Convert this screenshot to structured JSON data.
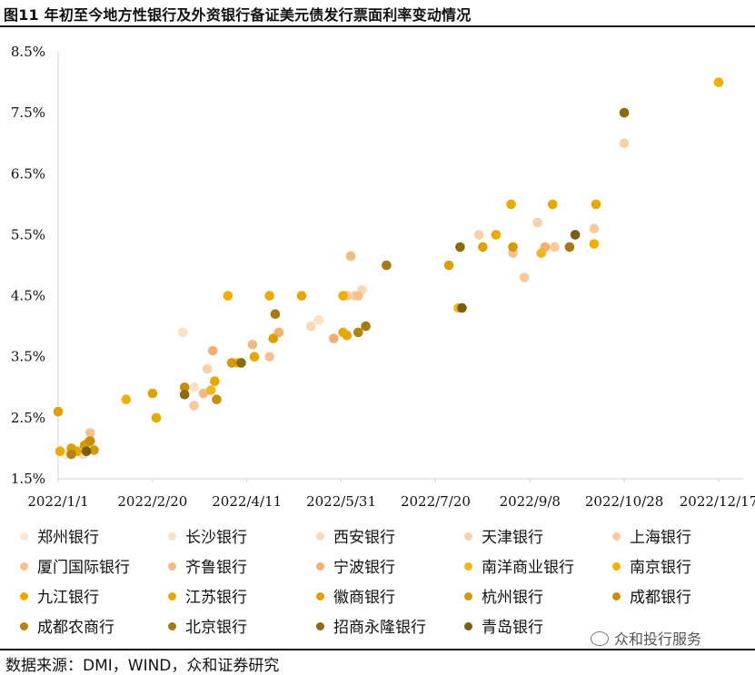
{
  "title": "图11 年初至今地方性银行及外资银行备证美元债发行票面利率变动情况",
  "source": "数据来源：DMI，WIND，众和证券研究",
  "watermark": "众和投行服务",
  "chart_data": {
    "type": "scatter",
    "title": "",
    "xlabel": "",
    "ylabel": "",
    "x_axis_type": "date",
    "xlim": [
      "2022-01-01",
      "2022-12-30"
    ],
    "ylim": [
      1.5,
      8.5
    ],
    "y_ticks": [
      "1.5%",
      "2.5%",
      "3.5%",
      "4.5%",
      "5.5%",
      "6.5%",
      "7.5%",
      "8.5%"
    ],
    "x_ticks": [
      {
        "date": "2022-01-01",
        "label": "2022/1/1"
      },
      {
        "date": "2022-02-20",
        "label": "2022/2/20"
      },
      {
        "date": "2022-04-11",
        "label": "2022/4/11"
      },
      {
        "date": "2022-05-31",
        "label": "2022/5/31"
      },
      {
        "date": "2022-07-20",
        "label": "2022/7/20"
      },
      {
        "date": "2022-09-08",
        "label": "2022/9/8"
      },
      {
        "date": "2022-10-28",
        "label": "2022/10/28"
      },
      {
        "date": "2022-12-17",
        "label": "2022/12/17"
      }
    ],
    "grid": false,
    "legend_position": "bottom",
    "series": [
      {
        "name": "郑州银行",
        "color": "#FCE8D2",
        "points": [
          [
            "2022-01-05",
            1.9
          ]
        ]
      },
      {
        "name": "长沙银行",
        "color": "#FBE0C5",
        "points": [
          [
            "2022-03-08",
            3.9
          ],
          [
            "2022-03-14",
            3.0
          ],
          [
            "2022-05-19",
            4.1
          ]
        ]
      },
      {
        "name": "西安银行",
        "color": "#FAD8B8",
        "points": [
          [
            "2022-01-14",
            1.9
          ],
          [
            "2022-05-15",
            4.0
          ],
          [
            "2022-06-11",
            4.6
          ]
        ]
      },
      {
        "name": "天津银行",
        "color": "#F9D0AA",
        "points": [
          [
            "2022-03-21",
            3.3
          ],
          [
            "2022-06-07",
            4.5
          ],
          [
            "2022-08-12",
            5.5
          ],
          [
            "2022-09-12",
            5.7
          ],
          [
            "2022-10-28",
            7.0
          ]
        ]
      },
      {
        "name": "上海银行",
        "color": "#F8C99D",
        "points": [
          [
            "2022-03-14",
            2.7
          ],
          [
            "2022-06-03",
            4.5
          ],
          [
            "2022-09-05",
            4.8
          ],
          [
            "2022-09-21",
            5.3
          ],
          [
            "2022-10-12",
            5.6
          ]
        ]
      },
      {
        "name": "厦门国际银行",
        "color": "#F7C090",
        "points": [
          [
            "2022-01-18",
            2.25
          ],
          [
            "2022-04-23",
            3.5
          ],
          [
            "2022-06-09",
            4.5
          ],
          [
            "2022-08-30",
            5.2
          ]
        ]
      },
      {
        "name": "齐鲁银行",
        "color": "#F5B983",
        "points": [
          [
            "2022-03-19",
            2.9
          ],
          [
            "2022-04-14",
            3.7
          ],
          [
            "2022-06-05",
            5.15
          ]
        ]
      },
      {
        "name": "宁波银行",
        "color": "#F4B070",
        "points": [
          [
            "2022-03-24",
            3.6
          ],
          [
            "2022-04-28",
            3.9
          ],
          [
            "2022-05-27",
            3.8
          ],
          [
            "2022-09-16",
            5.3
          ]
        ]
      },
      {
        "name": "南洋商业银行",
        "color": "#F2B520",
        "points": [
          [
            "2022-01-17",
            2.1
          ],
          [
            "2022-03-23",
            2.95
          ],
          [
            "2022-04-06",
            3.4
          ],
          [
            "2022-08-01",
            4.3
          ],
          [
            "2022-09-14",
            5.2
          ]
        ]
      },
      {
        "name": "南京银行",
        "color": "#EFB000",
        "points": [
          [
            "2022-02-06",
            2.8
          ],
          [
            "2022-04-01",
            4.5
          ],
          [
            "2022-06-01",
            4.5
          ],
          [
            "2022-10-12",
            5.35
          ],
          [
            "2022-12-17",
            8.0
          ]
        ]
      },
      {
        "name": "九江银行",
        "color": "#EAAB00",
        "points": [
          [
            "2022-01-02",
            1.95
          ],
          [
            "2022-02-22",
            2.5
          ],
          [
            "2022-04-23",
            4.5
          ],
          [
            "2022-06-01",
            3.9
          ],
          [
            "2022-08-21",
            5.5
          ],
          [
            "2022-08-29",
            6.0
          ]
        ]
      },
      {
        "name": "江苏银行",
        "color": "#E5A700",
        "points": [
          [
            "2022-01-11",
            1.95
          ],
          [
            "2022-03-25",
            3.1
          ],
          [
            "2022-04-15",
            3.5
          ],
          [
            "2022-05-10",
            4.5
          ],
          [
            "2022-06-03",
            3.85
          ],
          [
            "2022-09-20",
            6.0
          ],
          [
            "2022-10-13",
            6.0
          ]
        ]
      },
      {
        "name": "徽商银行",
        "color": "#DCA000",
        "points": [
          [
            "2022-01-01",
            2.6
          ],
          [
            "2022-01-08",
            2.0
          ],
          [
            "2022-02-20",
            2.9
          ],
          [
            "2022-04-25",
            3.8
          ],
          [
            "2022-07-27",
            5.0
          ],
          [
            "2022-08-14",
            5.3
          ]
        ]
      },
      {
        "name": "杭州银行",
        "color": "#D19A06",
        "points": [
          [
            "2022-01-15",
            2.05
          ],
          [
            "2022-01-20",
            1.97
          ],
          [
            "2022-04-03",
            3.4
          ],
          [
            "2022-08-30",
            5.3
          ]
        ]
      },
      {
        "name": "成都银行",
        "color": "#C4900C",
        "points": [
          [
            "2022-01-18",
            2.12
          ],
          [
            "2022-03-09",
            3.0
          ],
          [
            "2022-03-26",
            2.8
          ]
        ]
      },
      {
        "name": "成都农商行",
        "color": "#B38410",
        "points": [
          [
            "2022-01-08",
            1.9
          ],
          [
            "2022-06-09",
            3.9
          ]
        ]
      },
      {
        "name": "北京银行",
        "color": "#A67A12",
        "points": [
          [
            "2022-04-26",
            4.2
          ],
          [
            "2022-06-13",
            4.0
          ],
          [
            "2022-06-24",
            5.0
          ],
          [
            "2022-09-29",
            5.3
          ]
        ]
      },
      {
        "name": "招商永隆银行",
        "color": "#8C6A10",
        "points": [
          [
            "2022-03-09",
            2.88
          ],
          [
            "2022-04-08",
            3.4
          ],
          [
            "2022-08-02",
            5.3
          ],
          [
            "2022-10-28",
            7.5
          ]
        ]
      },
      {
        "name": "青岛银行",
        "color": "#7A5E12",
        "points": [
          [
            "2022-01-16",
            1.95
          ],
          [
            "2022-08-03",
            4.3
          ],
          [
            "2022-10-02",
            5.5
          ]
        ]
      }
    ]
  }
}
